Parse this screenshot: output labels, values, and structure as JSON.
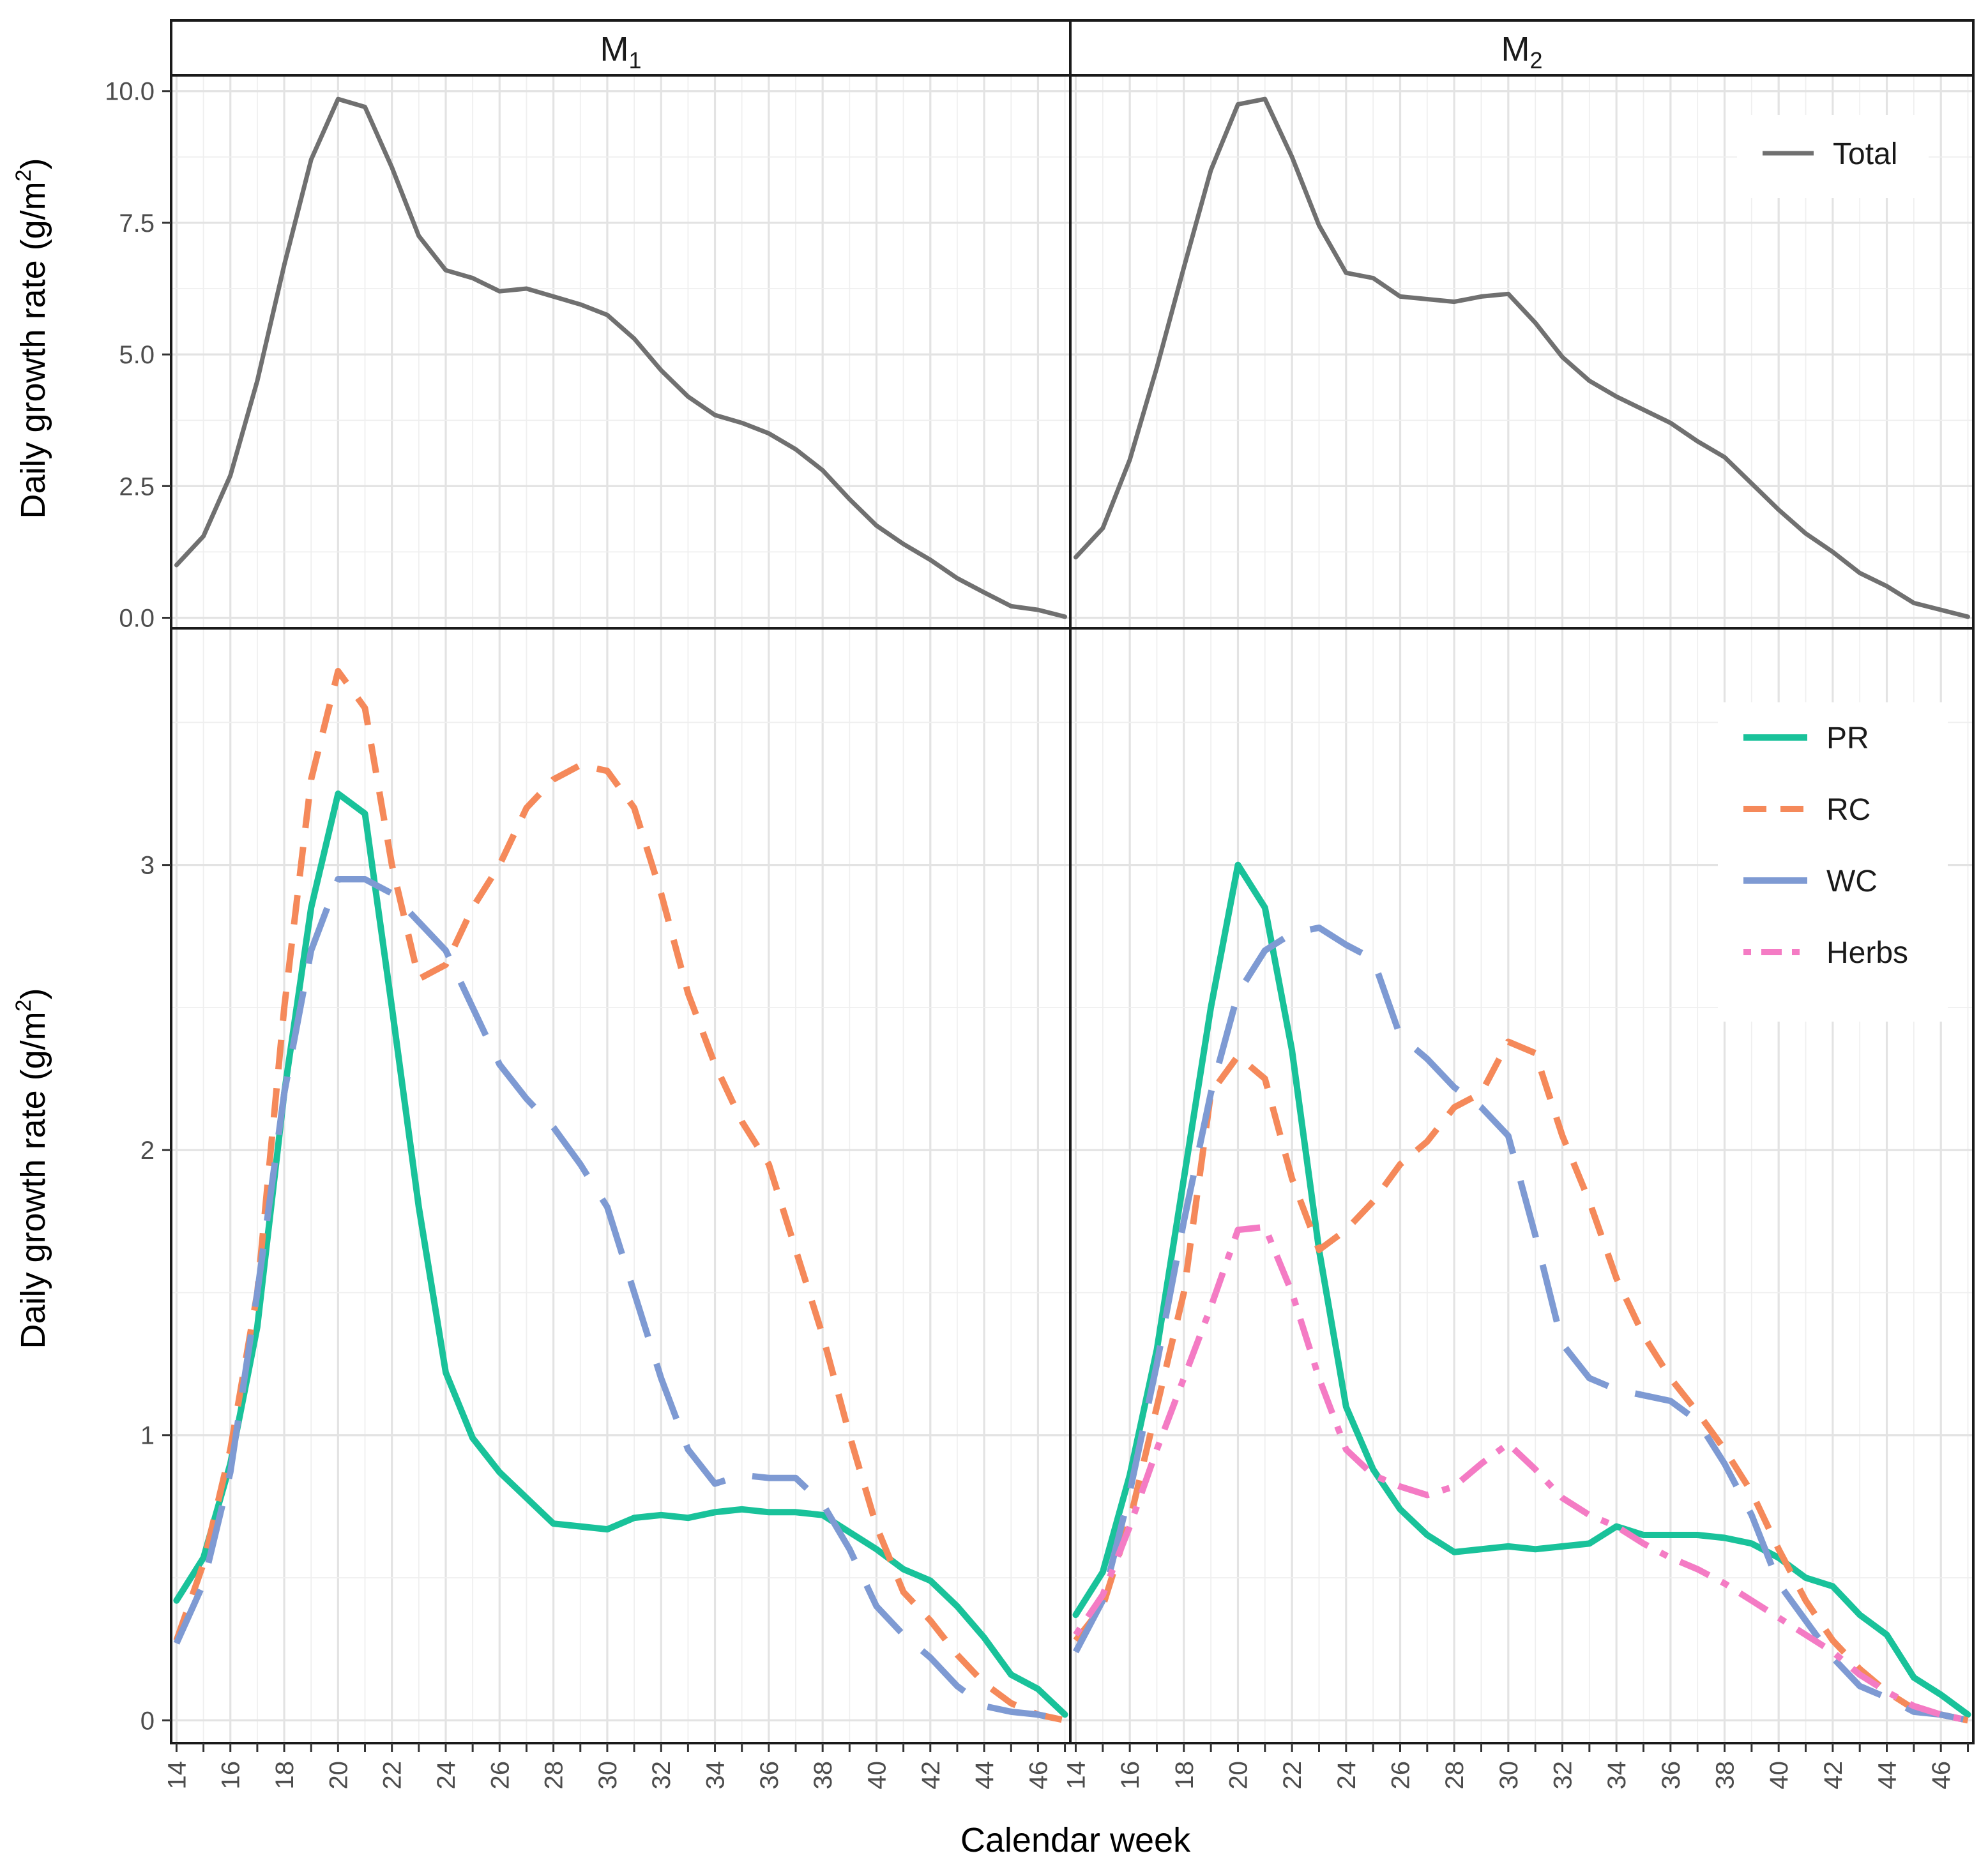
{
  "chart_data": {
    "type": "line",
    "facets": [
      {
        "label": "M",
        "sub": "1"
      },
      {
        "label": "M",
        "sub": "2"
      }
    ],
    "x": [
      14,
      15,
      16,
      17,
      18,
      19,
      20,
      21,
      22,
      23,
      24,
      25,
      26,
      27,
      28,
      29,
      30,
      31,
      32,
      33,
      34,
      35,
      36,
      37,
      38,
      39,
      40,
      41,
      42,
      43,
      44,
      45,
      46,
      47
    ],
    "xlabel": "Calendar week",
    "x_tick_labels": [
      "14",
      "16",
      "18",
      "20",
      "22",
      "24",
      "26",
      "28",
      "30",
      "32",
      "34",
      "36",
      "38",
      "40",
      "42",
      "44",
      "46"
    ],
    "xlim": [
      13.8,
      47.2
    ],
    "ylabel_top": {
      "main": "Daily growth rate  (g/m",
      "sup": "2",
      "close": ")"
    },
    "ylabel_bottom": {
      "main": "Daily growth rate  (g/m",
      "sup": "2",
      "close": ")"
    },
    "top_row": {
      "ylim": [
        -0.2,
        10.3
      ],
      "y_ticks": [
        0,
        2.5,
        5,
        7.5,
        10
      ],
      "y_tick_labels": [
        "0.0",
        "2.5",
        "5.0",
        "7.5",
        "10.0"
      ],
      "legend": {
        "position": "top-right",
        "entries": [
          "Total"
        ]
      },
      "series": [
        {
          "name": "Total",
          "color": "#707070",
          "dash": "solid",
          "panels": [
            [
              1.0,
              1.55,
              2.7,
              4.5,
              6.7,
              8.7,
              9.85,
              9.7,
              8.55,
              7.25,
              6.6,
              6.45,
              6.2,
              6.25,
              6.1,
              5.95,
              5.75,
              5.3,
              4.7,
              4.2,
              3.85,
              3.7,
              3.5,
              3.2,
              2.8,
              2.25,
              1.75,
              1.4,
              1.1,
              0.75,
              0.48,
              0.22,
              0.15,
              0.02
            ],
            [
              1.15,
              1.7,
              3.0,
              4.75,
              6.65,
              8.5,
              9.75,
              9.85,
              8.75,
              7.45,
              6.55,
              6.45,
              6.1,
              6.05,
              6.0,
              6.1,
              6.15,
              5.6,
              4.95,
              4.5,
              4.2,
              3.95,
              3.7,
              3.35,
              3.05,
              2.55,
              2.05,
              1.6,
              1.25,
              0.85,
              0.6,
              0.28,
              0.15,
              0.02
            ]
          ]
        }
      ]
    },
    "bottom_row": {
      "ylim": [
        -0.08,
        3.83
      ],
      "y_ticks": [
        0,
        1,
        2,
        3
      ],
      "y_tick_labels": [
        "0",
        "1",
        "2",
        "3"
      ],
      "legend": {
        "position": "top-right",
        "entries": [
          "PR",
          "RC",
          "WC",
          "Herbs"
        ]
      },
      "series": [
        {
          "name": "PR",
          "color": "#19c29a",
          "dash": "solid",
          "panels": [
            [
              0.42,
              0.57,
              0.9,
              1.38,
              2.2,
              2.85,
              3.25,
              3.18,
              2.5,
              1.8,
              1.22,
              0.99,
              0.87,
              0.78,
              0.69,
              0.68,
              0.67,
              0.71,
              0.72,
              0.71,
              0.73,
              0.74,
              0.73,
              0.73,
              0.72,
              0.66,
              0.6,
              0.53,
              0.49,
              0.4,
              0.29,
              0.16,
              0.11,
              0.02
            ],
            [
              0.37,
              0.52,
              0.86,
              1.3,
              1.9,
              2.5,
              3.0,
              2.85,
              2.35,
              1.65,
              1.1,
              0.88,
              0.74,
              0.65,
              0.59,
              0.6,
              0.61,
              0.6,
              0.61,
              0.62,
              0.68,
              0.65,
              0.65,
              0.65,
              0.64,
              0.62,
              0.57,
              0.5,
              0.47,
              0.37,
              0.3,
              0.15,
              0.09,
              0.02
            ]
          ]
        },
        {
          "name": "RC",
          "color": "#f5895a",
          "dash": "dashed",
          "panels": [
            [
              0.28,
              0.55,
              0.95,
              1.5,
              2.5,
              3.3,
              3.68,
              3.55,
              3.0,
              2.6,
              2.65,
              2.85,
              3.0,
              3.2,
              3.3,
              3.35,
              3.33,
              3.2,
              2.9,
              2.55,
              2.3,
              2.1,
              1.95,
              1.65,
              1.35,
              1.0,
              0.68,
              0.45,
              0.35,
              0.23,
              0.13,
              0.06,
              0.02,
              0.0
            ],
            [
              0.28,
              0.4,
              0.7,
              1.1,
              1.5,
              2.2,
              2.33,
              2.25,
              1.9,
              1.65,
              1.72,
              1.82,
              1.95,
              2.03,
              2.15,
              2.2,
              2.38,
              2.34,
              2.05,
              1.82,
              1.55,
              1.35,
              1.2,
              1.08,
              0.95,
              0.8,
              0.6,
              0.42,
              0.28,
              0.18,
              0.1,
              0.04,
              0.02,
              0.0
            ]
          ]
        },
        {
          "name": "WC",
          "color": "#7e9ad3",
          "dash": "longdash",
          "panels": [
            [
              0.27,
              0.48,
              0.87,
              1.5,
              2.2,
              2.7,
              2.95,
              2.95,
              2.9,
              2.8,
              2.7,
              2.5,
              2.3,
              2.18,
              2.08,
              1.95,
              1.8,
              1.5,
              1.2,
              0.95,
              0.83,
              0.86,
              0.85,
              0.85,
              0.76,
              0.6,
              0.4,
              0.3,
              0.22,
              0.12,
              0.05,
              0.03,
              0.02,
              0.0
            ],
            [
              0.24,
              0.42,
              0.8,
              1.25,
              1.75,
              2.2,
              2.55,
              2.7,
              2.76,
              2.78,
              2.72,
              2.67,
              2.4,
              2.32,
              2.22,
              2.15,
              2.05,
              1.7,
              1.32,
              1.2,
              1.16,
              1.14,
              1.12,
              1.05,
              0.9,
              0.72,
              0.48,
              0.35,
              0.22,
              0.12,
              0.08,
              0.03,
              0.02,
              0.0
            ]
          ]
        },
        {
          "name": "Herbs",
          "color": "#f47bc4",
          "dash": "dotdash",
          "panels": [
            null,
            [
              0.3,
              0.44,
              0.68,
              0.95,
              1.2,
              1.45,
              1.72,
              1.73,
              1.5,
              1.2,
              0.95,
              0.86,
              0.82,
              0.79,
              0.82,
              0.9,
              0.97,
              0.88,
              0.78,
              0.72,
              0.68,
              0.62,
              0.57,
              0.53,
              0.48,
              0.42,
              0.36,
              0.3,
              0.24,
              0.16,
              0.1,
              0.05,
              0.02,
              0.0
            ]
          ]
        }
      ]
    }
  }
}
